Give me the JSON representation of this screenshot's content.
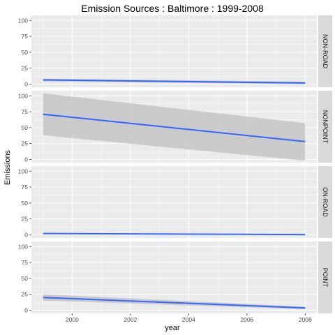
{
  "chart_data": {
    "type": "line",
    "title": "Emission Sources : Baltimore : 1999-2008",
    "xlabel": "year",
    "ylabel": "Emissions",
    "xlim": [
      1998.6,
      2008.4
    ],
    "ylim": [
      -5,
      108
    ],
    "x_ticks": [
      2000,
      2002,
      2004,
      2006,
      2008
    ],
    "y_ticks": [
      0,
      25,
      50,
      75,
      100
    ],
    "x_tick_labels": [
      "2000",
      "2002",
      "2004",
      "2006",
      "2008"
    ],
    "y_tick_labels": [
      "0",
      "25",
      "50",
      "75",
      "100"
    ],
    "grid": true,
    "facet": "rows",
    "colors": {
      "panel_bg": "#ebebeb",
      "grid": "#ffffff",
      "strip_bg": "#d9d9d9",
      "line": "#3366ff",
      "ribbon": "#bfbfbf"
    },
    "panels": [
      {
        "label": "NON-ROAD",
        "x": [
          1999,
          2008
        ],
        "y": [
          6.5,
          1.7
        ],
        "lower": [
          4.5,
          -0.3
        ],
        "upper": [
          8.5,
          3.7
        ]
      },
      {
        "label": "NONPOINT",
        "x": [
          1999,
          2008
        ],
        "y": [
          71,
          28
        ],
        "lower": [
          38,
          -2
        ],
        "upper": [
          104,
          57
        ]
      },
      {
        "label": "ON-ROAD",
        "x": [
          1999,
          2008
        ],
        "y": [
          2,
          0.4
        ],
        "lower": [
          1.5,
          -0.1
        ],
        "upper": [
          2.5,
          0.9
        ]
      },
      {
        "label": "POINT",
        "x": [
          1999,
          2008
        ],
        "y": [
          20,
          3.5
        ],
        "lower": [
          15,
          1.5
        ],
        "upper": [
          25,
          5.5
        ]
      }
    ]
  }
}
